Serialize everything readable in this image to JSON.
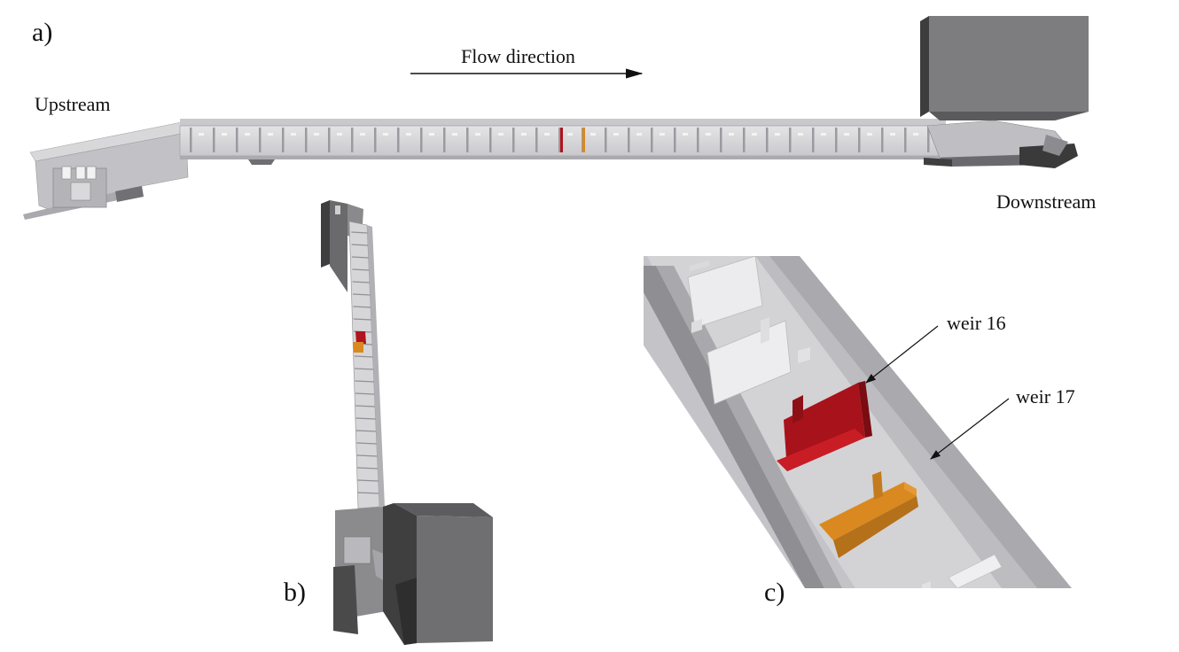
{
  "panels": {
    "a": "a)",
    "b": "b)",
    "c": "c)"
  },
  "labels": {
    "upstream": "Upstream",
    "downstream": "Downstream",
    "flow_direction": "Flow direction",
    "weir16": "weir 16",
    "weir17": "weir 17"
  },
  "colors": {
    "channel_light": "#d9d9db",
    "channel_mid": "#bdbdc2",
    "channel_dark": "#8f8f94",
    "structure": "#7a7a7a",
    "structure_dark": "#4d4d4d",
    "weir16": "#b0141c",
    "weir17": "#d9891f"
  }
}
